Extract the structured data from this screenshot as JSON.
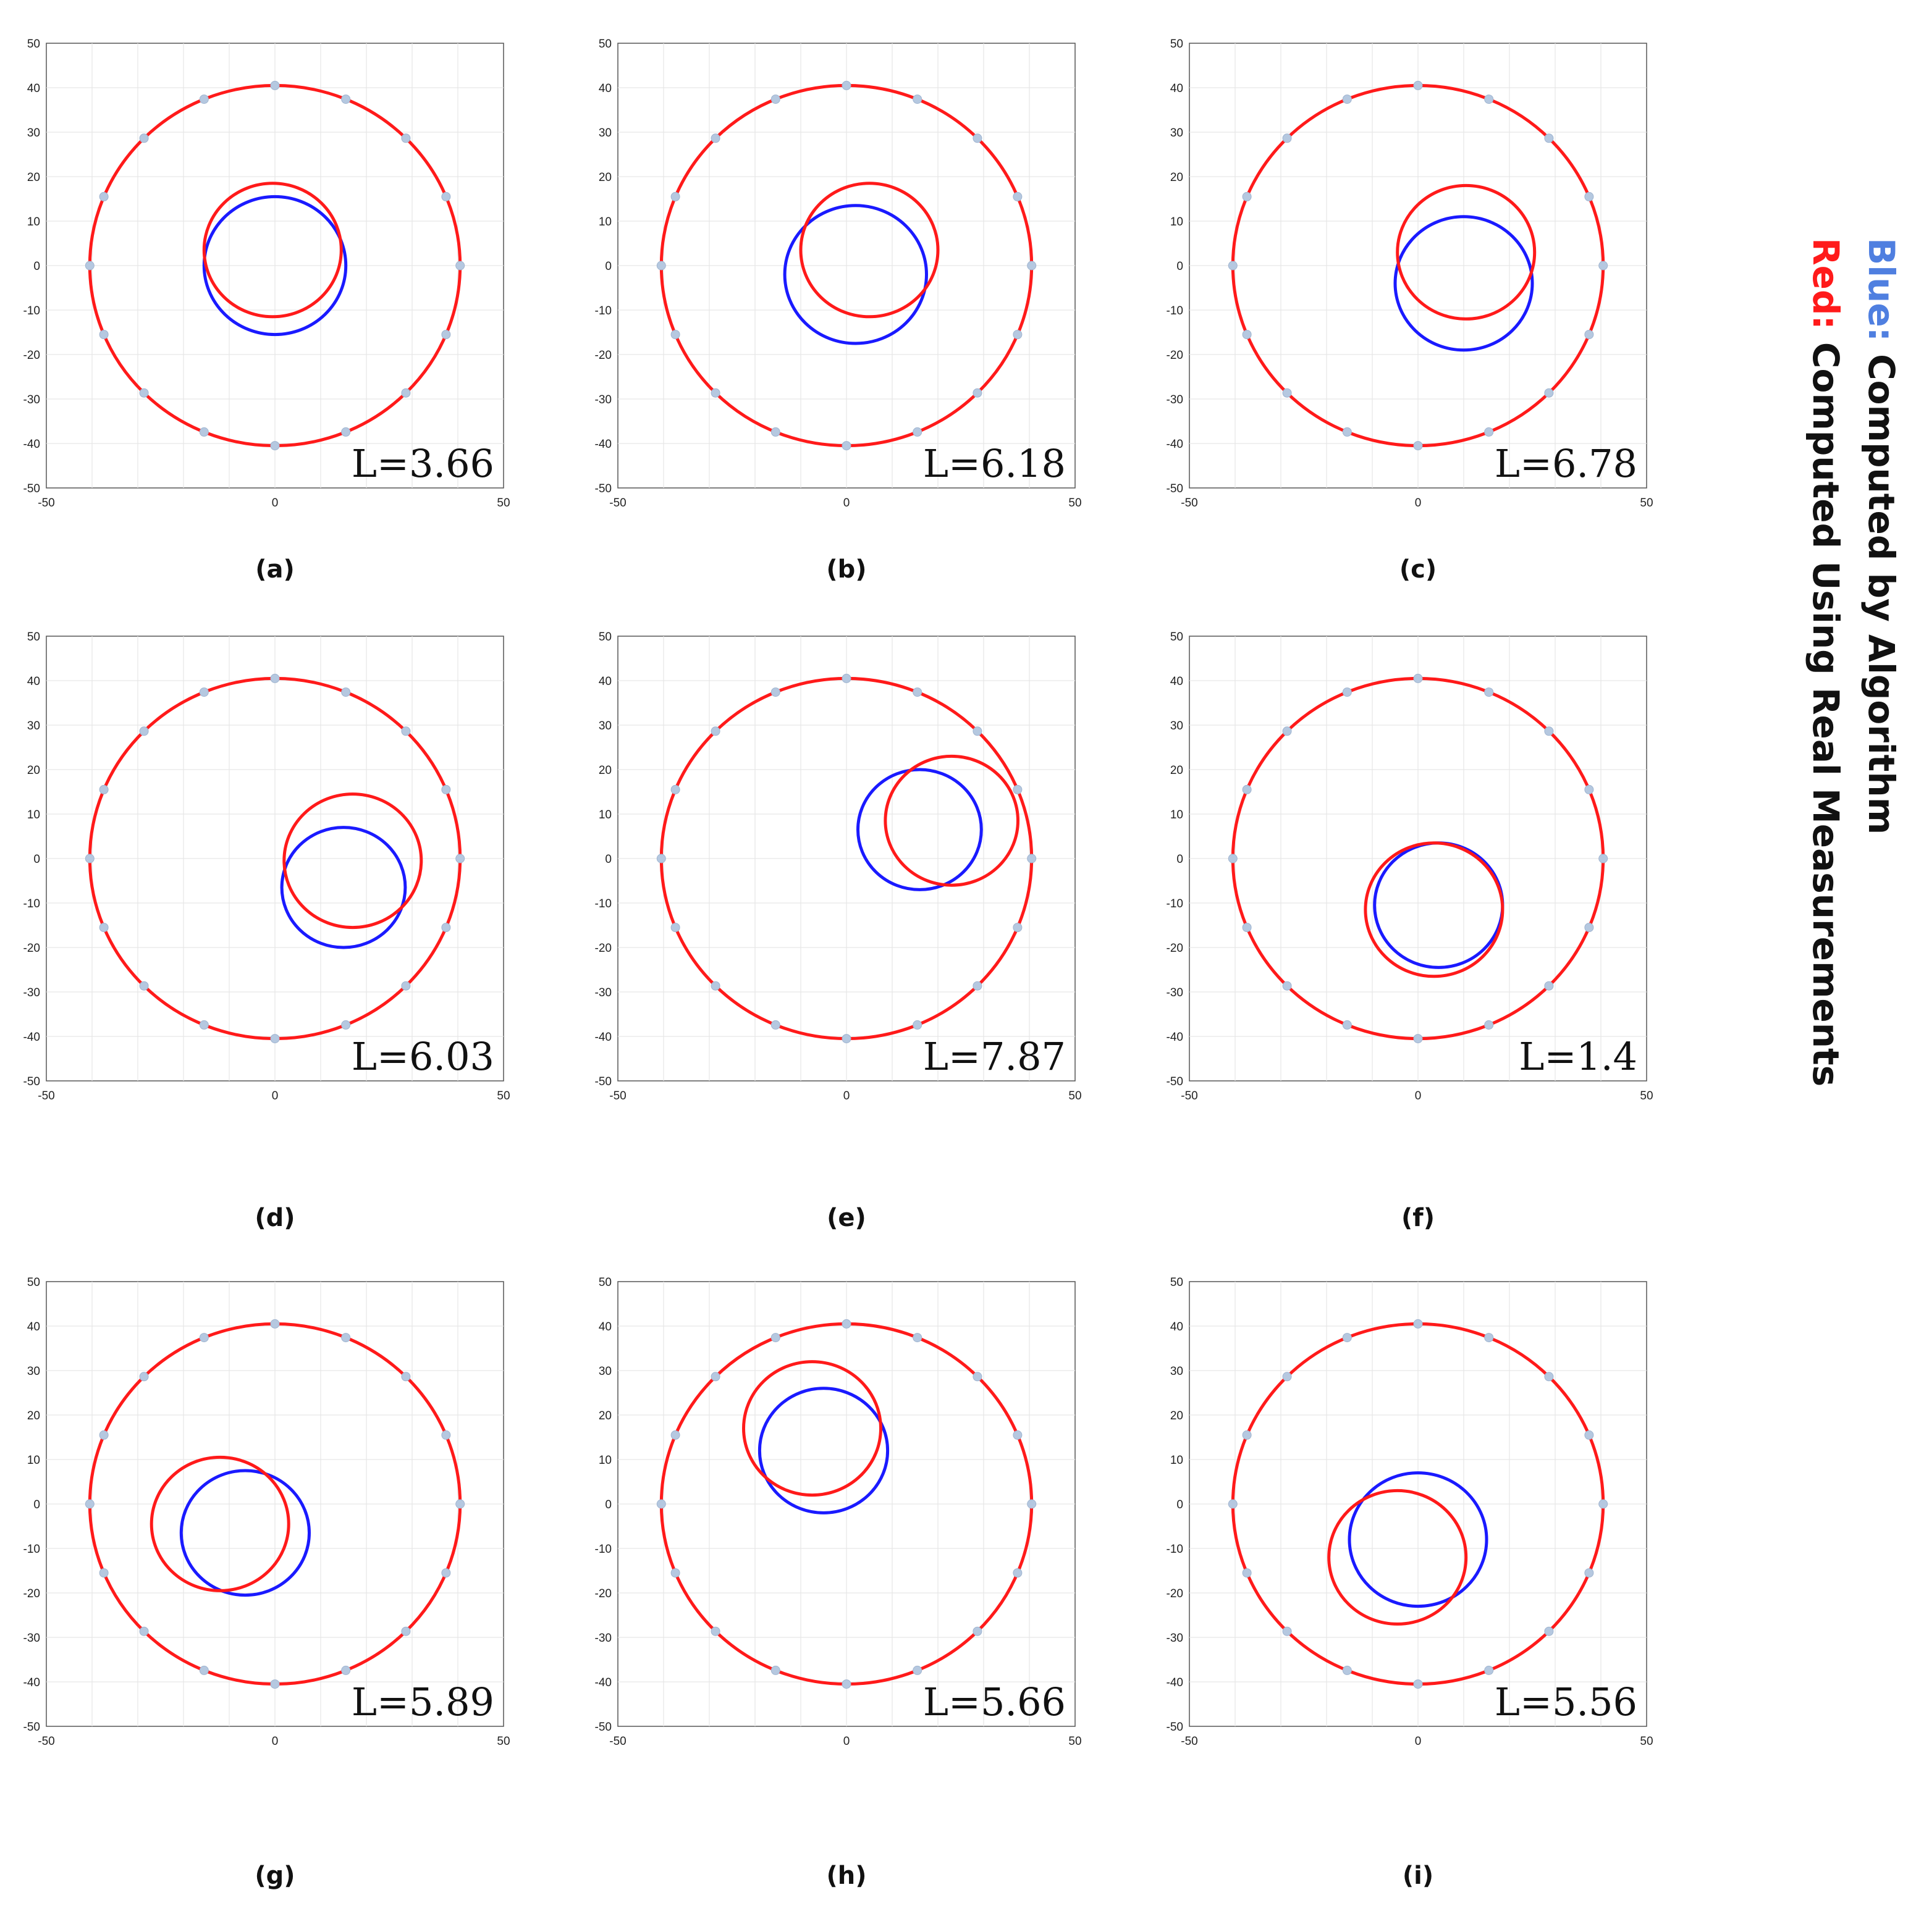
{
  "legend": {
    "blue_word": "Blue:",
    "blue_text": " Computed by Algorithm",
    "red_word": "Red:",
    "red_text": " Computed Using Real Measurements",
    "blue_color": "#4f7fe0",
    "red_color": "#ff1a1a"
  },
  "axis": {
    "xlim": [
      -50,
      50
    ],
    "ylim": [
      -50,
      50
    ],
    "x_ticks": [
      -50,
      0,
      50
    ],
    "y_ticks": [
      50,
      40,
      30,
      20,
      10,
      0,
      -10,
      -20,
      -30,
      -40,
      -50
    ],
    "grid": true
  },
  "colors": {
    "algorithm": "#1a1aff",
    "measured": "#ff1a1a",
    "marker": "#b5c8e0"
  },
  "chart_data": [
    {
      "type": "scatter",
      "label": "(a)",
      "L": "L=3.66",
      "outer": {
        "cx": 0,
        "cy": 0,
        "r": 40.5
      },
      "algorithm": {
        "cx": 0,
        "cy": 0,
        "r": 15.5
      },
      "measured": {
        "cx": -0.5,
        "cy": 3.5,
        "r": 15
      }
    },
    {
      "type": "scatter",
      "label": "(b)",
      "L": "L=6.18",
      "outer": {
        "cx": 0,
        "cy": 0,
        "r": 40.5
      },
      "algorithm": {
        "cx": 2,
        "cy": -2,
        "r": 15.5
      },
      "measured": {
        "cx": 5,
        "cy": 3.5,
        "r": 15
      }
    },
    {
      "type": "scatter",
      "label": "(c)",
      "L": "L=6.78",
      "outer": {
        "cx": 0,
        "cy": 0,
        "r": 40.5
      },
      "algorithm": {
        "cx": 10,
        "cy": -4,
        "r": 15
      },
      "measured": {
        "cx": 10.5,
        "cy": 3,
        "r": 15
      }
    },
    {
      "type": "scatter",
      "label": "(d)",
      "L": "L=6.03",
      "outer": {
        "cx": 0,
        "cy": 0,
        "r": 40.5
      },
      "algorithm": {
        "cx": 15,
        "cy": -6.5,
        "r": 13.5
      },
      "measured": {
        "cx": 17,
        "cy": -0.5,
        "r": 15
      }
    },
    {
      "type": "scatter",
      "label": "(e)",
      "L": "L=7.87",
      "outer": {
        "cx": 0,
        "cy": 0,
        "r": 40.5
      },
      "algorithm": {
        "cx": 16,
        "cy": 6.5,
        "r": 13.5
      },
      "measured": {
        "cx": 23,
        "cy": 8.5,
        "r": 14.5
      }
    },
    {
      "type": "scatter",
      "label": "(f)",
      "L": "L=1.4",
      "outer": {
        "cx": 0,
        "cy": 0,
        "r": 40.5
      },
      "algorithm": {
        "cx": 4.5,
        "cy": -10.5,
        "r": 14
      },
      "measured": {
        "cx": 3.5,
        "cy": -11.5,
        "r": 15
      }
    },
    {
      "type": "scatter",
      "label": "(g)",
      "L": "L=5.89",
      "outer": {
        "cx": 0,
        "cy": 0,
        "r": 40.5
      },
      "algorithm": {
        "cx": -6.5,
        "cy": -6.5,
        "r": 14
      },
      "measured": {
        "cx": -12,
        "cy": -4.5,
        "r": 15
      }
    },
    {
      "type": "scatter",
      "label": "(h)",
      "L": "L=5.66",
      "outer": {
        "cx": 0,
        "cy": 0,
        "r": 40.5
      },
      "algorithm": {
        "cx": -5,
        "cy": 12,
        "r": 14
      },
      "measured": {
        "cx": -7.5,
        "cy": 17,
        "r": 15
      }
    },
    {
      "type": "scatter",
      "label": "(i)",
      "L": "L=5.56",
      "outer": {
        "cx": 0,
        "cy": 0,
        "r": 40.5
      },
      "algorithm": {
        "cx": 0,
        "cy": -8,
        "r": 15
      },
      "measured": {
        "cx": -4.5,
        "cy": -12,
        "r": 15
      }
    }
  ]
}
